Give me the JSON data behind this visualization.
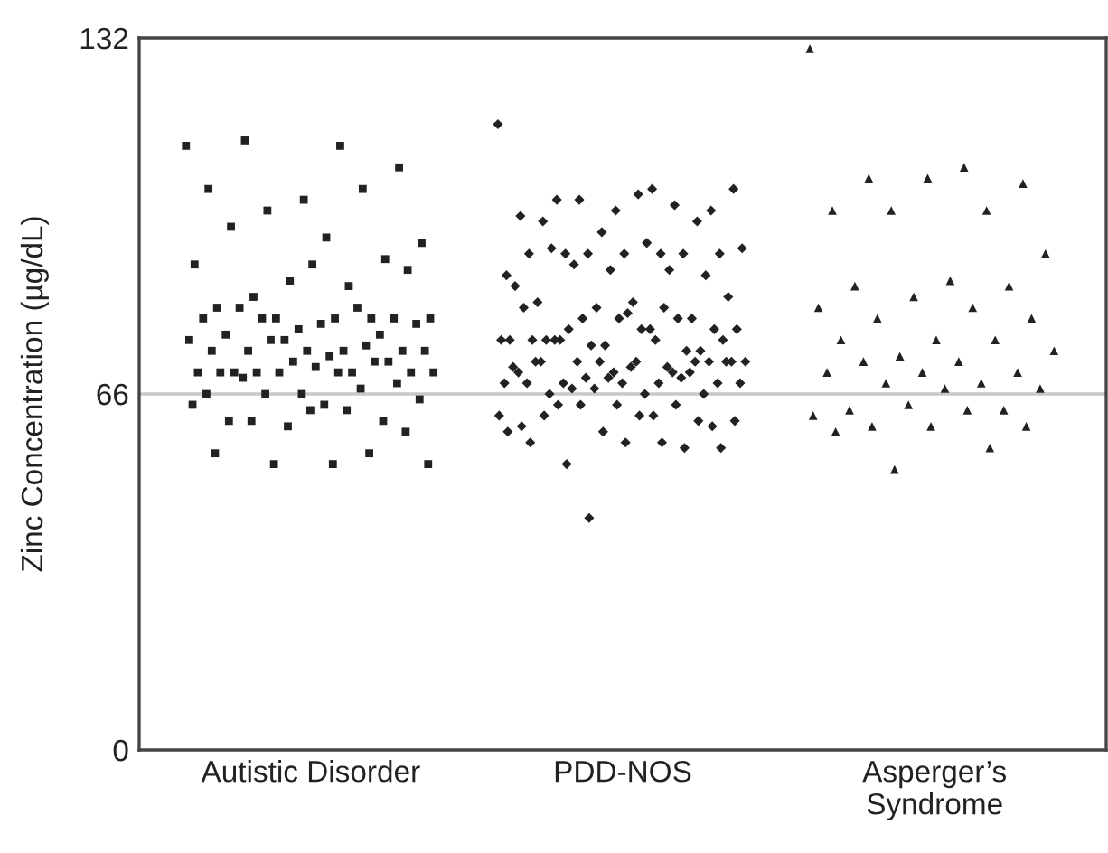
{
  "chart_data": {
    "type": "scatter",
    "ylabel": "Zinc Concentration (µg/dL)",
    "categories": [
      "Autistic Disorder",
      "PDD-NOS",
      "Asperger’s\nSyndrome"
    ],
    "ylim": [
      0,
      132
    ],
    "yticks": [
      0,
      66,
      132
    ],
    "grid": false,
    "ref_lines": [
      {
        "axis": "y",
        "value": 66,
        "color": "#c8c8c8"
      }
    ],
    "series": [
      {
        "color": "#222222",
        "marker": "square",
        "x": [
          "Autistic Disorder",
          "Autistic Disorder",
          "Autistic Disorder",
          "Autistic Disorder",
          "Autistic Disorder",
          "Autistic Disorder",
          "Autistic Disorder",
          "Autistic Disorder",
          "Autistic Disorder",
          "Autistic Disorder",
          "Autistic Disorder",
          "Autistic Disorder",
          "Autistic Disorder",
          "Autistic Disorder",
          "Autistic Disorder",
          "Autistic Disorder",
          "Autistic Disorder",
          "Autistic Disorder",
          "Autistic Disorder",
          "Autistic Disorder",
          "Autistic Disorder",
          "Autistic Disorder",
          "Autistic Disorder",
          "Autistic Disorder",
          "Autistic Disorder",
          "Autistic Disorder",
          "Autistic Disorder",
          "Autistic Disorder",
          "Autistic Disorder",
          "Autistic Disorder",
          "Autistic Disorder",
          "Autistic Disorder",
          "Autistic Disorder",
          "Autistic Disorder",
          "Autistic Disorder",
          "Autistic Disorder",
          "Autistic Disorder",
          "Autistic Disorder",
          "Autistic Disorder",
          "Autistic Disorder",
          "Autistic Disorder",
          "Autistic Disorder",
          "Autistic Disorder",
          "Autistic Disorder",
          "Autistic Disorder",
          "Autistic Disorder",
          "Autistic Disorder",
          "Autistic Disorder",
          "Autistic Disorder",
          "Autistic Disorder",
          "Autistic Disorder",
          "Autistic Disorder",
          "Autistic Disorder",
          "Autistic Disorder",
          "Autistic Disorder",
          "Autistic Disorder",
          "Autistic Disorder",
          "Autistic Disorder",
          "Autistic Disorder",
          "Autistic Disorder",
          "Autistic Disorder",
          "Autistic Disorder",
          "Autistic Disorder",
          "Autistic Disorder",
          "Autistic Disorder",
          "Autistic Disorder",
          "Autistic Disorder",
          "Autistic Disorder",
          "Autistic Disorder",
          "Autistic Disorder",
          "Autistic Disorder",
          "Autistic Disorder",
          "Autistic Disorder",
          "Autistic Disorder",
          "Autistic Disorder",
          "Autistic Disorder",
          "Autistic Disorder",
          "Autistic Disorder"
        ],
        "values": [
          112,
          112,
          113,
          108,
          102,
          104,
          104,
          100,
          94,
          95,
          97,
          91,
          87,
          90,
          86,
          84,
          89,
          90,
          82,
          80,
          80,
          80,
          80,
          82,
          80,
          78,
          80,
          82,
          80,
          79,
          79,
          77,
          77,
          76,
          76,
          74,
          74,
          74,
          74,
          74,
          75,
          76,
          74,
          73,
          70,
          72,
          72,
          70,
          70,
          70,
          70,
          71,
          70,
          72,
          70,
          70,
          70,
          69,
          68,
          66,
          66,
          67,
          66,
          65,
          64,
          61,
          61,
          60,
          64,
          63,
          61,
          59,
          63,
          55,
          55,
          53,
          53,
          53
        ]
      },
      {
        "color": "#222222",
        "marker": "diamond",
        "x": [
          "PDD-NOS",
          "PDD-NOS",
          "PDD-NOS",
          "PDD-NOS",
          "PDD-NOS",
          "PDD-NOS",
          "PDD-NOS",
          "PDD-NOS",
          "PDD-NOS",
          "PDD-NOS",
          "PDD-NOS",
          "PDD-NOS",
          "PDD-NOS",
          "PDD-NOS",
          "PDD-NOS",
          "PDD-NOS",
          "PDD-NOS",
          "PDD-NOS",
          "PDD-NOS",
          "PDD-NOS",
          "PDD-NOS",
          "PDD-NOS",
          "PDD-NOS",
          "PDD-NOS",
          "PDD-NOS",
          "PDD-NOS",
          "PDD-NOS",
          "PDD-NOS",
          "PDD-NOS",
          "PDD-NOS",
          "PDD-NOS",
          "PDD-NOS",
          "PDD-NOS",
          "PDD-NOS",
          "PDD-NOS",
          "PDD-NOS",
          "PDD-NOS",
          "PDD-NOS",
          "PDD-NOS",
          "PDD-NOS",
          "PDD-NOS",
          "PDD-NOS",
          "PDD-NOS",
          "PDD-NOS",
          "PDD-NOS",
          "PDD-NOS",
          "PDD-NOS",
          "PDD-NOS",
          "PDD-NOS",
          "PDD-NOS",
          "PDD-NOS",
          "PDD-NOS",
          "PDD-NOS",
          "PDD-NOS",
          "PDD-NOS",
          "PDD-NOS",
          "PDD-NOS",
          "PDD-NOS",
          "PDD-NOS",
          "PDD-NOS",
          "PDD-NOS",
          "PDD-NOS",
          "PDD-NOS",
          "PDD-NOS",
          "PDD-NOS",
          "PDD-NOS",
          "PDD-NOS",
          "PDD-NOS",
          "PDD-NOS",
          "PDD-NOS",
          "PDD-NOS",
          "PDD-NOS",
          "PDD-NOS",
          "PDD-NOS",
          "PDD-NOS",
          "PDD-NOS",
          "PDD-NOS",
          "PDD-NOS",
          "PDD-NOS",
          "PDD-NOS",
          "PDD-NOS",
          "PDD-NOS",
          "PDD-NOS",
          "PDD-NOS",
          "PDD-NOS",
          "PDD-NOS",
          "PDD-NOS",
          "PDD-NOS",
          "PDD-NOS",
          "PDD-NOS",
          "PDD-NOS",
          "PDD-NOS",
          "PDD-NOS",
          "PDD-NOS",
          "PDD-NOS",
          "PDD-NOS",
          "PDD-NOS",
          "PDD-NOS",
          "PDD-NOS",
          "PDD-NOS",
          "PDD-NOS",
          "PDD-NOS",
          "PDD-NOS",
          "PDD-NOS",
          "PDD-NOS",
          "PDD-NOS",
          "PDD-NOS",
          "PDD-NOS",
          "PDD-NOS",
          "PDD-NOS"
        ],
        "values": [
          116,
          104,
          102,
          100,
          100,
          99,
          101,
          102,
          104,
          103,
          98,
          98,
          96,
          88,
          92,
          92,
          92,
          92,
          92,
          92,
          92,
          93,
          94,
          93,
          88,
          89,
          86,
          89,
          90,
          84,
          83,
          83,
          80,
          82,
          76,
          76,
          76,
          78,
          80,
          82,
          80,
          80,
          78,
          78,
          76,
          74,
          75,
          76,
          82,
          78,
          76,
          81,
          76,
          74,
          75,
          72,
          78,
          76,
          72,
          70,
          70,
          70,
          72,
          72,
          72,
          72,
          72,
          72,
          68,
          68,
          68,
          68,
          68,
          68,
          69,
          69,
          68,
          66,
          66,
          66,
          69,
          71,
          71,
          67,
          72,
          71,
          72,
          70,
          67,
          62,
          62,
          64,
          60,
          64,
          60,
          64,
          64,
          61,
          62,
          62,
          61,
          59,
          59,
          57,
          53,
          56,
          57,
          57,
          56,
          43
        ]
      },
      {
        "color": "#222222",
        "marker": "triangle",
        "x": [
          "Asperger’s\nSyndrome",
          "Asperger’s\nSyndrome",
          "Asperger’s\nSyndrome",
          "Asperger’s\nSyndrome",
          "Asperger’s\nSyndrome",
          "Asperger’s\nSyndrome",
          "Asperger’s\nSyndrome",
          "Asperger’s\nSyndrome",
          "Asperger’s\nSyndrome",
          "Asperger’s\nSyndrome",
          "Asperger’s\nSyndrome",
          "Asperger’s\nSyndrome",
          "Asperger’s\nSyndrome",
          "Asperger’s\nSyndrome",
          "Asperger’s\nSyndrome",
          "Asperger’s\nSyndrome",
          "Asperger’s\nSyndrome",
          "Asperger’s\nSyndrome",
          "Asperger’s\nSyndrome",
          "Asperger’s\nSyndrome",
          "Asperger’s\nSyndrome",
          "Asperger’s\nSyndrome",
          "Asperger’s\nSyndrome",
          "Asperger’s\nSyndrome",
          "Asperger’s\nSyndrome",
          "Asperger’s\nSyndrome",
          "Asperger’s\nSyndrome",
          "Asperger’s\nSyndrome",
          "Asperger’s\nSyndrome",
          "Asperger’s\nSyndrome",
          "Asperger’s\nSyndrome",
          "Asperger’s\nSyndrome",
          "Asperger’s\nSyndrome",
          "Asperger’s\nSyndrome",
          "Asperger’s\nSyndrome",
          "Asperger’s\nSyndrome",
          "Asperger’s\nSyndrome",
          "Asperger’s\nSyndrome",
          "Asperger’s\nSyndrome",
          "Asperger’s\nSyndrome",
          "Asperger’s\nSyndrome",
          "Asperger’s\nSyndrome"
        ],
        "values": [
          130,
          108,
          106,
          105,
          106,
          100,
          100,
          100,
          92,
          87,
          86,
          86,
          84,
          82,
          82,
          80,
          80,
          76,
          76,
          76,
          73,
          74,
          72,
          72,
          70,
          70,
          70,
          68,
          68,
          67,
          67,
          63,
          63,
          64,
          62,
          63,
          60,
          60,
          60,
          59,
          56,
          52
        ]
      }
    ]
  }
}
